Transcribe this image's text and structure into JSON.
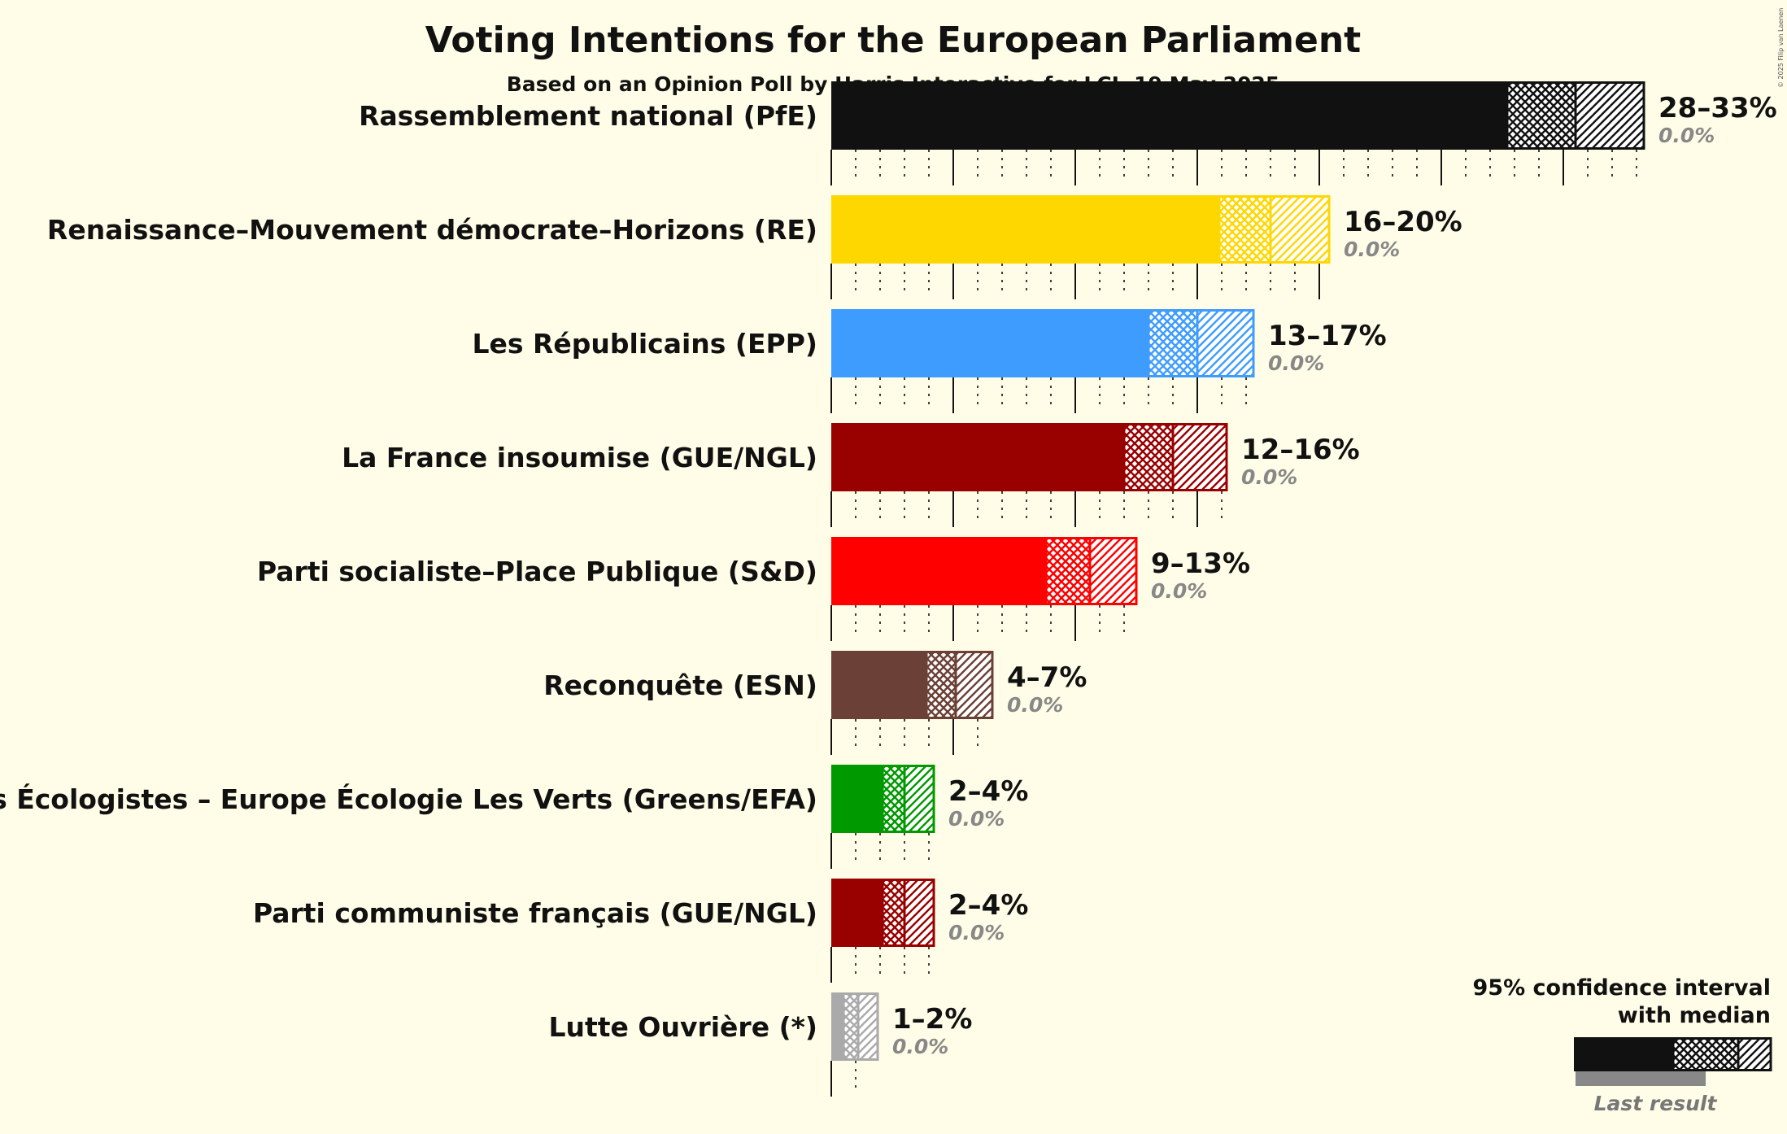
{
  "header": {
    "title": "Voting Intentions for the European Parliament",
    "subtitle": "Based on an Opinion Poll by Harris Interactive for LCI, 19 May 2025"
  },
  "copyright": "© 2025 Filip van Laenen",
  "legend": {
    "line1": "95% confidence interval",
    "line2": "with median",
    "last_result": "Last result"
  },
  "chart_data": {
    "type": "bar",
    "orientation": "horizontal",
    "title": "Voting Intentions for the European Parliament",
    "subtitle": "Based on an Opinion Poll by Harris Interactive for LCI, 19 May 2025",
    "xlim": [
      0,
      33.3
    ],
    "series": [
      {
        "party": "Rassemblement national (PfE)",
        "low": 27.7,
        "median": 30.5,
        "high": 33.3,
        "label": "28–33%",
        "last_result": "0.0%",
        "color": "#111111"
      },
      {
        "party": "Renaissance–Mouvement démocrate–Horizons (RE)",
        "low": 15.9,
        "median": 18.0,
        "high": 20.4,
        "label": "16–20%",
        "last_result": "0.0%",
        "color": "#FFD700"
      },
      {
        "party": "Les Républicains (EPP)",
        "low": 13.0,
        "median": 15.0,
        "high": 17.3,
        "label": "13–17%",
        "last_result": "0.0%",
        "color": "#3F9CFF"
      },
      {
        "party": "La France insoumise (GUE/NGL)",
        "low": 12.0,
        "median": 14.0,
        "high": 16.2,
        "label": "12–16%",
        "last_result": "0.0%",
        "color": "#990000"
      },
      {
        "party": "Parti socialiste–Place Publique (S&D)",
        "low": 8.8,
        "median": 10.6,
        "high": 12.5,
        "label": "9–13%",
        "last_result": "0.0%",
        "color": "#FF0000"
      },
      {
        "party": "Reconquête (ESN)",
        "low": 3.9,
        "median": 5.1,
        "high": 6.6,
        "label": "4–7%",
        "last_result": "0.0%",
        "color": "#6B4036"
      },
      {
        "party": "Les Écologistes – Europe Écologie Les Verts (Greens/EFA)",
        "low": 2.1,
        "median": 3.0,
        "high": 4.2,
        "label": "2–4%",
        "last_result": "0.0%",
        "color": "#009900"
      },
      {
        "party": "Parti communiste français (GUE/NGL)",
        "low": 2.1,
        "median": 3.0,
        "high": 4.2,
        "label": "2–4%",
        "last_result": "0.0%",
        "color": "#990000"
      },
      {
        "party": "Lutte Ouvrière (*)",
        "low": 0.5,
        "median": 1.1,
        "high": 1.9,
        "label": "1–2%",
        "last_result": "0.0%",
        "color": "#AAAAAA"
      }
    ]
  }
}
